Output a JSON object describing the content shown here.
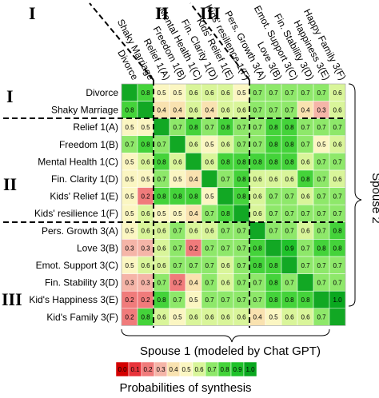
{
  "chart_data": {
    "type": "heatmap",
    "row_labels": [
      "Divorce",
      "Shaky Marriage",
      "Relief 1(A)",
      "Freedom 1(B)",
      "Mental Health 1(C)",
      "Fin. Clarity 1(D)",
      "Kids' Relief 1(E)",
      "Kids' resilience 1(F)",
      "Pers. Growth 3(A)",
      "Love 3(B)",
      "Emot. Support 3(C)",
      "Fin. Stability 3(D)",
      "Kid's Happiness 3(E)",
      "Kid's Family 3(F)"
    ],
    "col_labels": [
      "Divorce",
      "Shaky Marriage",
      "Relief 1(A)",
      "Freedom 1(B)",
      "Mental Health 1(C)",
      "Fin. Clarity 1(D)",
      "Kids' Relief 1(E)",
      "Kids' resilience 1(F)",
      "Pers. Growth 3(A)",
      "Love 3(B)",
      "Emot. Support 3(C)",
      "Fin. Stability 3(D)",
      "Happiness 3(E)",
      "Happy Family 3(F)"
    ],
    "groups": [
      "I",
      "II",
      "III"
    ],
    "y_title": "Spouse 2",
    "x_title": "Spouse 1 (modeled by Chat GPT)",
    "colorbar_title": "Probabilities of synthesis",
    "values": [
      [
        null,
        0.8,
        0.5,
        0.5,
        0.6,
        0.6,
        0.6,
        0.5,
        0.7,
        0.7,
        0.7,
        0.7,
        0.7,
        0.6
      ],
      [
        0.8,
        null,
        0.4,
        0.4,
        0.6,
        0.4,
        0.6,
        0.6,
        0.7,
        0.7,
        0.7,
        0.4,
        0.3,
        0.6
      ],
      [
        0.5,
        0.5,
        null,
        0.7,
        0.8,
        0.7,
        0.8,
        0.7,
        0.7,
        0.8,
        0.8,
        0.7,
        0.7,
        0.7
      ],
      [
        0.7,
        0.8,
        0.7,
        null,
        0.6,
        0.5,
        0.6,
        0.7,
        0.7,
        0.8,
        0.8,
        0.7,
        0.5,
        0.6
      ],
      [
        0.5,
        0.6,
        0.8,
        0.6,
        null,
        0.6,
        0.8,
        0.8,
        0.8,
        0.8,
        0.8,
        0.6,
        0.7,
        0.7
      ],
      [
        0.5,
        0.5,
        0.7,
        0.5,
        0.4,
        null,
        0.7,
        0.8,
        0.6,
        0.6,
        0.6,
        0.8,
        0.7,
        0.6
      ],
      [
        0.5,
        0.2,
        0.8,
        0.8,
        0.8,
        0.5,
        null,
        0.8,
        0.6,
        0.7,
        0.7,
        0.6,
        0.7,
        0.7
      ],
      [
        0.5,
        0.6,
        0.5,
        0.5,
        0.4,
        0.7,
        0.8,
        null,
        0.6,
        0.7,
        0.7,
        0.7,
        0.7,
        0.7
      ],
      [
        0.5,
        0.6,
        0.6,
        0.7,
        0.6,
        0.6,
        0.7,
        0.7,
        null,
        0.7,
        0.7,
        0.6,
        0.7,
        0.8
      ],
      [
        0.3,
        0.3,
        0.6,
        0.7,
        0.2,
        0.7,
        0.7,
        0.7,
        0.8,
        null,
        0.9,
        0.7,
        0.8,
        0.8
      ],
      [
        0.5,
        0.6,
        0.6,
        0.7,
        0.7,
        0.7,
        0.6,
        0.7,
        0.8,
        0.8,
        null,
        0.7,
        0.7,
        0.7
      ],
      [
        0.3,
        0.3,
        0.7,
        0.2,
        0.4,
        0.7,
        0.6,
        0.7,
        0.7,
        0.8,
        0.7,
        null,
        0.7,
        0.7
      ],
      [
        0.2,
        0.2,
        0.8,
        0.7,
        0.5,
        0.7,
        0.7,
        0.7,
        0.7,
        0.8,
        0.8,
        0.8,
        null,
        1.0
      ],
      [
        0.2,
        0.8,
        0.6,
        0.5,
        0.6,
        0.6,
        0.6,
        0.6,
        0.4,
        0.5,
        0.6,
        0.6,
        0.7,
        null
      ]
    ],
    "value_labels": [
      [
        null,
        "0.8",
        "0.5",
        "0.5",
        "0.6",
        "0.6",
        "0.6",
        "0.5",
        "0.7",
        "0.7",
        "0.7",
        "0.7",
        "0.7",
        "0.6"
      ],
      [
        "0.8",
        null,
        "0.4",
        "0.4",
        "0.6",
        "0.4",
        "0.6",
        "0.6",
        "0.7",
        "0.7",
        "0.7",
        "0.4",
        "0.3",
        "0.6"
      ],
      [
        "0.5",
        "0.5",
        null,
        "0.7",
        "0.8",
        "0.7",
        "0.8",
        "0.7",
        "0.7",
        "0.8",
        "0.8",
        "0.7",
        "0.7",
        "0.7"
      ],
      [
        "0.7",
        "0.8",
        "0.7",
        null,
        "0.6",
        "0.5",
        "0.6",
        "0.7",
        "0.7",
        "0.8",
        "0.8",
        "0.7",
        "0.5",
        "0.6"
      ],
      [
        "0.5",
        "0.6",
        "0.8",
        "0.6",
        null,
        "0.6",
        "0.8",
        "0.8",
        "0.8",
        "0.8",
        "0.8",
        "0.6",
        "0.7",
        "0.7"
      ],
      [
        "0.5",
        "0.5",
        "0.7",
        "0.5",
        "0.4",
        null,
        "0.7",
        "0.8",
        "0.6",
        "0.6",
        "0.6",
        "0.8",
        "0.7",
        "0.6"
      ],
      [
        "0.5",
        "0.2",
        "0.8",
        "0.8",
        "0.8",
        "0.5",
        null,
        "0.8",
        "0.6",
        "0.7",
        "0.7",
        "0.6",
        "0.7",
        "0.7"
      ],
      [
        "0.5",
        "0.6",
        "0.5",
        "0.5",
        "0.4",
        "0.7",
        "0.8",
        null,
        "0.6",
        "0.7",
        "0.7",
        "0.7",
        "0.7",
        "0.7"
      ],
      [
        "0.5",
        "0.6",
        "0.6",
        "0.7",
        "0.6",
        "0.6",
        "0.7",
        "0.7",
        null,
        "0.7",
        "0.7",
        "0.6",
        "0.7",
        "0.8"
      ],
      [
        "0.3",
        "0.3",
        "0.6",
        "0.7",
        "0.2",
        "0.7",
        "0.7",
        "0.7",
        "0.8",
        null,
        "0.9",
        "0.7",
        "0.8",
        "0.8"
      ],
      [
        "0.5",
        "0.6",
        "0.6",
        "0.7",
        "0.7",
        "0.7",
        "0.6",
        "0.7",
        "0.8",
        "0.8",
        null,
        "0.7",
        "0.7",
        "0.7"
      ],
      [
        "0.3",
        "0.3",
        "0.7",
        "0.2",
        "0.4",
        "0.7",
        "0.6",
        "0.7",
        "0.7",
        "0.8",
        "0.7",
        null,
        "0.7",
        "0.7"
      ],
      [
        "0.2",
        "0.2",
        "0.8",
        "0.7",
        "0.5",
        "0.7",
        "0.7",
        "0.7",
        "0.7",
        "0.8",
        "0.8",
        "0.8",
        null,
        "1.0"
      ],
      [
        "0.2",
        "0.8",
        "0.6",
        "0.5",
        "0.6",
        "0.6",
        "0.6",
        "0.6",
        "0.4",
        "0.5",
        "0.6",
        "0.6",
        "0.7",
        null
      ]
    ],
    "diagonal_color": "#12a824",
    "colorbar_ticks": [
      {
        "value": 0,
        "label": "0.0"
      },
      0.1,
      0.2,
      0.3,
      0.4,
      0.5,
      0.6,
      0.7,
      0.8,
      0.9,
      {
        "value": 1,
        "label": "1.0"
      }
    ],
    "colorscale": [
      "#d40000",
      "#e8333a",
      "#f07b7b",
      "#f5b5a8",
      "#f9e2b0",
      "#fbf6c2",
      "#d9f59a",
      "#8ee86a",
      "#44d33a",
      "#1fc22a",
      "#0aa81f"
    ]
  }
}
